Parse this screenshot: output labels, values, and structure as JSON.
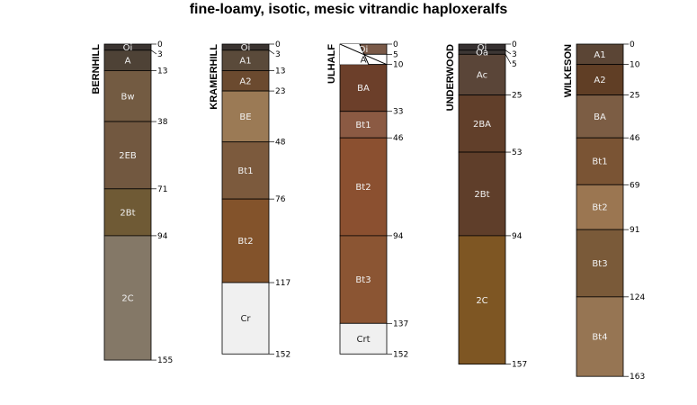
{
  "title": "fine-loamy, isotic, mesic vitrandic haploxeralfs",
  "profiles": [
    {
      "name": "BERNHILL",
      "horizons": [
        {
          "name": "Oi",
          "top": 0,
          "bottom": 3,
          "color": "#3a3330"
        },
        {
          "name": "A",
          "top": 3,
          "bottom": 13,
          "color": "#4e4236"
        },
        {
          "name": "Bw",
          "top": 13,
          "bottom": 38,
          "color": "#735b42"
        },
        {
          "name": "2EB",
          "top": 38,
          "bottom": 71,
          "color": "#725840"
        },
        {
          "name": "2Bt",
          "top": 71,
          "bottom": 94,
          "color": "#6f5a35"
        },
        {
          "name": "2C",
          "top": 94,
          "bottom": 155,
          "color": "#847867"
        }
      ]
    },
    {
      "name": "KRAMERHILL",
      "horizons": [
        {
          "name": "Oi",
          "top": 0,
          "bottom": 3,
          "color": "#3a3330"
        },
        {
          "name": "A1",
          "top": 3,
          "bottom": 13,
          "color": "#5a4a3a"
        },
        {
          "name": "A2",
          "top": 13,
          "bottom": 23,
          "color": "#6b4a2f"
        },
        {
          "name": "BE",
          "top": 23,
          "bottom": 48,
          "color": "#9b7a55"
        },
        {
          "name": "Bt1",
          "top": 48,
          "bottom": 76,
          "color": "#7c5a3d"
        },
        {
          "name": "Bt2",
          "top": 76,
          "bottom": 117,
          "color": "#83532b"
        },
        {
          "name": "Cr",
          "top": 117,
          "bottom": 152,
          "color": "#f0f0f0"
        }
      ]
    },
    {
      "name": "ULHALF",
      "horizons": [
        {
          "name": "Oi",
          "top": 0,
          "bottom": 5,
          "color": "#7a5a48",
          "diagonal": true
        },
        {
          "name": "A",
          "top": 5,
          "bottom": 10,
          "color": "#ffffff",
          "diagonal": true
        },
        {
          "name": "BA",
          "top": 10,
          "bottom": 33,
          "color": "#6c3f2a"
        },
        {
          "name": "Bt1",
          "top": 33,
          "bottom": 46,
          "color": "#8b5a43"
        },
        {
          "name": "Bt2",
          "top": 46,
          "bottom": 94,
          "color": "#8b5030"
        },
        {
          "name": "Bt3",
          "top": 94,
          "bottom": 137,
          "color": "#8b5533"
        },
        {
          "name": "Crt",
          "top": 137,
          "bottom": 152,
          "color": "#f0f0f0"
        }
      ]
    },
    {
      "name": "UNDERWOOD",
      "horizons": [
        {
          "name": "Oi",
          "top": 0,
          "bottom": 3,
          "color": "#353030"
        },
        {
          "name": "Oa",
          "top": 3,
          "bottom": 5,
          "color": "#3c3634"
        },
        {
          "name": "Ac",
          "top": 5,
          "bottom": 25,
          "color": "#5a4538"
        },
        {
          "name": "2BA",
          "top": 25,
          "bottom": 53,
          "color": "#613f2a"
        },
        {
          "name": "2Bt",
          "top": 53,
          "bottom": 94,
          "color": "#5f3e2a"
        },
        {
          "name": "2C",
          "top": 94,
          "bottom": 157,
          "color": "#7e5623"
        }
      ]
    },
    {
      "name": "WILKESON",
      "horizons": [
        {
          "name": "A1",
          "top": 0,
          "bottom": 10,
          "color": "#5b4535"
        },
        {
          "name": "A2",
          "top": 10,
          "bottom": 25,
          "color": "#603e25"
        },
        {
          "name": "BA",
          "top": 25,
          "bottom": 46,
          "color": "#7c5d44"
        },
        {
          "name": "Bt1",
          "top": 46,
          "bottom": 69,
          "color": "#7a5434"
        },
        {
          "name": "Bt2",
          "top": 69,
          "bottom": 91,
          "color": "#9b7651"
        },
        {
          "name": "Bt3",
          "top": 91,
          "bottom": 124,
          "color": "#7a5a39"
        },
        {
          "name": "Bt4",
          "top": 124,
          "bottom": 163,
          "color": "#967553"
        }
      ]
    }
  ]
}
